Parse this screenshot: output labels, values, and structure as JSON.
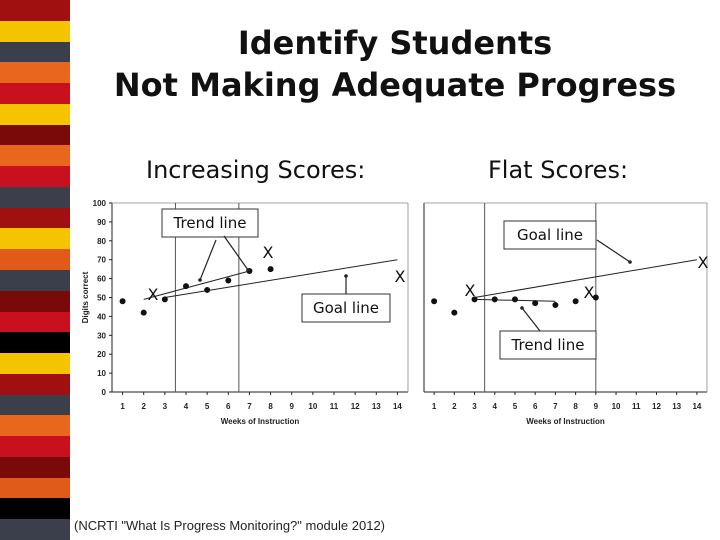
{
  "title_line1": "Identify Students",
  "title_line2": "Not Making Adequate Progress",
  "left_heading": "Increasing Scores:",
  "right_heading": "Flat Scores:",
  "citation": "(NCRTI \"What Is Progress Monitoring?\" module 2012)",
  "stripe_colors": [
    "#a01010",
    "#f5c400",
    "#3a3f4b",
    "#e8671c",
    "#c8101e",
    "#7a0a0a",
    "#e05a1a",
    "#000000"
  ],
  "chart_data": [
    {
      "type": "scatter",
      "title": "",
      "xlabel": "Weeks of Instruction",
      "ylabel": "Digits correct",
      "xlim": [
        0.5,
        14.5
      ],
      "ylim": [
        0,
        100
      ],
      "x_ticks": [
        1,
        2,
        3,
        4,
        5,
        6,
        7,
        8,
        9,
        10,
        11,
        12,
        13,
        14
      ],
      "y_ticks": [
        0,
        10,
        20,
        30,
        40,
        50,
        60,
        70,
        80,
        90,
        100
      ],
      "phase_lines": [
        3.5,
        6.5
      ],
      "points": [
        [
          1,
          48
        ],
        [
          2,
          42
        ],
        [
          3,
          49
        ],
        [
          4,
          56
        ],
        [
          5,
          54
        ],
        [
          6,
          59
        ],
        [
          7,
          64
        ],
        [
          8,
          65
        ]
      ],
      "trend_line": [
        [
          2,
          49
        ],
        [
          7,
          64
        ]
      ],
      "goal_line": [
        [
          3,
          50
        ],
        [
          14,
          70
        ]
      ],
      "annotations": [
        {
          "text": "Trend line",
          "boxed": true
        },
        {
          "text": "Goal line",
          "boxed": true
        },
        {
          "text": "X"
        },
        {
          "text": "X"
        },
        {
          "text": "X"
        }
      ]
    },
    {
      "type": "scatter",
      "title": "",
      "xlabel": "Weeks of Instruction",
      "ylabel": "",
      "xlim": [
        0.5,
        14.5
      ],
      "ylim": [
        0,
        100
      ],
      "x_ticks": [
        1,
        2,
        3,
        4,
        5,
        6,
        7,
        8,
        9,
        10,
        11,
        12,
        13,
        14
      ],
      "y_ticks": [],
      "phase_lines": [
        3.5,
        9.0
      ],
      "points": [
        [
          1,
          48
        ],
        [
          2,
          42
        ],
        [
          3,
          49
        ],
        [
          4,
          49
        ],
        [
          5,
          49
        ],
        [
          6,
          47
        ],
        [
          7,
          46
        ],
        [
          8,
          48
        ],
        [
          9,
          50
        ]
      ],
      "trend_line": [
        [
          3,
          49
        ],
        [
          7,
          48
        ]
      ],
      "goal_line": [
        [
          3,
          50
        ],
        [
          14,
          70
        ]
      ],
      "annotations": [
        {
          "text": "Goal line",
          "boxed": true
        },
        {
          "text": "Trend line",
          "boxed": true
        },
        {
          "text": "X"
        },
        {
          "text": "X"
        },
        {
          "text": "X"
        }
      ]
    }
  ]
}
